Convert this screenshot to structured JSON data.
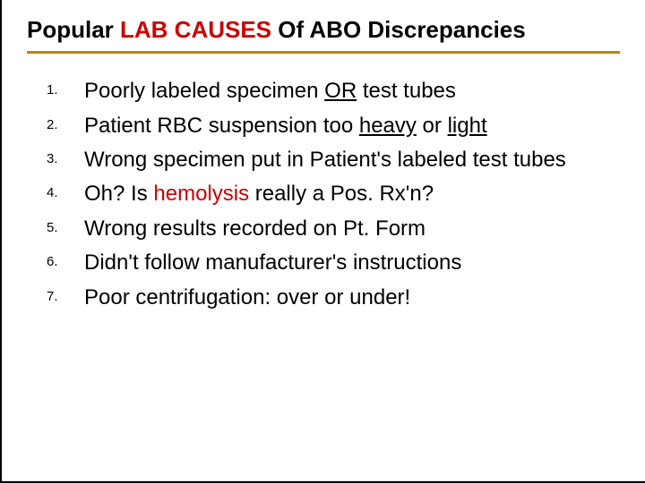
{
  "title": {
    "part1": "Popular ",
    "part2_red": "LAB CAUSES",
    "part3": " Of ABO Discrepancies",
    "font_family": "Comic Sans MS",
    "font_size": 26,
    "underline_color": "#b8860b",
    "red_color": "#cc0000"
  },
  "list": {
    "font_family": "Arial",
    "number_font_size": 15,
    "text_font_size": 24,
    "text_color": "#000000",
    "red_color": "#cc0000",
    "items": [
      {
        "num": "1.",
        "segments": [
          {
            "text": "Poorly labeled specimen ",
            "red": false,
            "underline": false
          },
          {
            "text": "OR",
            "red": false,
            "underline": true
          },
          {
            "text": " test tubes",
            "red": false,
            "underline": false
          }
        ]
      },
      {
        "num": "2.",
        "segments": [
          {
            "text": "Patient RBC suspension too ",
            "red": false,
            "underline": false
          },
          {
            "text": "heavy",
            "red": false,
            "underline": true
          },
          {
            "text": " or ",
            "red": false,
            "underline": false
          },
          {
            "text": "light",
            "red": false,
            "underline": true
          }
        ]
      },
      {
        "num": "3.",
        "segments": [
          {
            "text": "Wrong specimen put in Patient's labeled test tubes",
            "red": false,
            "underline": false
          }
        ]
      },
      {
        "num": "4.",
        "segments": [
          {
            "text": "Oh? Is ",
            "red": false,
            "underline": false
          },
          {
            "text": "hemolysis",
            "red": true,
            "underline": false
          },
          {
            "text": " really a Pos. Rx'n?",
            "red": false,
            "underline": false
          }
        ]
      },
      {
        "num": "5.",
        "segments": [
          {
            "text": "Wrong results recorded on Pt. Form",
            "red": false,
            "underline": false
          }
        ]
      },
      {
        "num": "6.",
        "segments": [
          {
            "text": "Didn't follow manufacturer's instructions",
            "red": false,
            "underline": false
          }
        ]
      },
      {
        "num": "7.",
        "segments": [
          {
            "text": "Poor centrifugation: over or under!",
            "red": false,
            "underline": false
          }
        ]
      }
    ]
  },
  "background_color": "#ffffff",
  "border_color": "#000000"
}
